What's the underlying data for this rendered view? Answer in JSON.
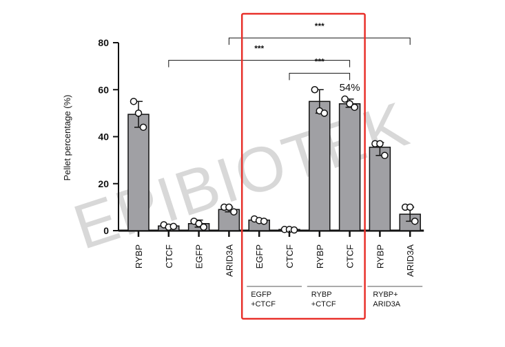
{
  "chart_data": {
    "type": "bar",
    "title": "",
    "ylabel": "Pellet percentage (%)",
    "xlabel": "",
    "ylim": [
      0,
      80
    ],
    "yticks": [
      0,
      20,
      40,
      60,
      80
    ],
    "grid": false,
    "bar_color": "#a0a0a4",
    "categories": [
      "RYBP",
      "CTCF",
      "EGFP",
      "ARID3A",
      "EGFP",
      "CTCF",
      "RYBP",
      "CTCF",
      "RYBP",
      "ARID3A"
    ],
    "values": [
      49.5,
      2,
      3,
      9,
      4.5,
      0.5,
      55,
      54,
      35.5,
      7
    ],
    "errors": [
      [
        44,
        55
      ],
      [
        1.5,
        2.5
      ],
      [
        1.5,
        4.5
      ],
      [
        8,
        10
      ],
      [
        4,
        5
      ],
      [
        0,
        1
      ],
      [
        50,
        60
      ],
      [
        52.5,
        56
      ],
      [
        32,
        37.5
      ],
      [
        4,
        10
      ]
    ],
    "points": [
      [
        55,
        50,
        44
      ],
      [
        2.5,
        1.5,
        1.8
      ],
      [
        4,
        3,
        1.5
      ],
      [
        10,
        10,
        8
      ],
      [
        5,
        4.3,
        4
      ],
      [
        0.5,
        0.5,
        0.3
      ],
      [
        60,
        51,
        50
      ],
      [
        56,
        54,
        52.5
      ],
      [
        37,
        37,
        32
      ],
      [
        10,
        10,
        4
      ]
    ],
    "groups": [
      {
        "label_lines": [
          "EGFP",
          "+CTCF"
        ],
        "from": 4,
        "to": 5
      },
      {
        "label_lines": [
          "RYBP",
          "+CTCF"
        ],
        "from": 6,
        "to": 7
      },
      {
        "label_lines": [
          "RYBP+",
          "ARID3A"
        ],
        "from": 8,
        "to": 9
      }
    ],
    "significance": [
      {
        "from": 3,
        "to": 9,
        "y": 82,
        "label": "***"
      },
      {
        "from": 1,
        "to": 7,
        "y": 72.5,
        "label": "***"
      },
      {
        "from": 5,
        "to": 7,
        "y": 67,
        "label": "***"
      }
    ],
    "annotations": [
      {
        "bar": 7,
        "text": "54%"
      }
    ],
    "highlight_box": {
      "from": 4,
      "to": 7,
      "color": "#e8302a"
    },
    "watermark": "EPIBIOTEK"
  }
}
